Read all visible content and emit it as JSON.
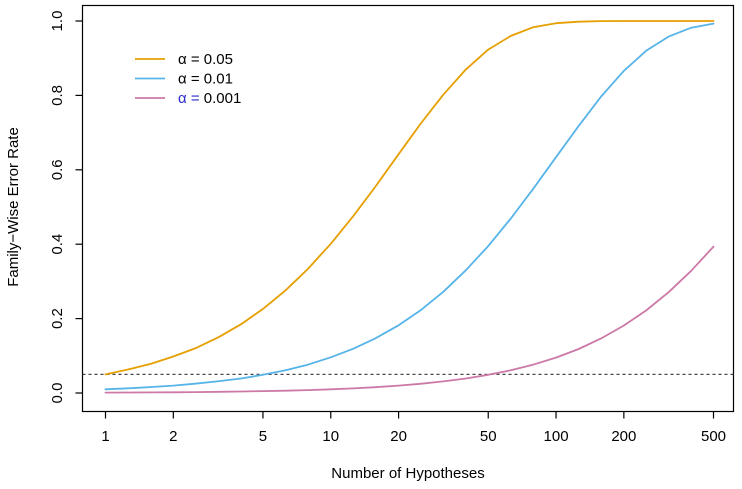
{
  "figure": {
    "background": "#FFFFFF",
    "box_color": "#000000"
  },
  "chart_data": {
    "type": "line",
    "title": "",
    "xlabel": "Number of Hypotheses",
    "ylabel": "Family−Wise Error Rate",
    "x_scale": "log",
    "xlim": [
      1,
      500
    ],
    "ylim": [
      0,
      1
    ],
    "grid": false,
    "legend_position": "top-left",
    "x_ticks": {
      "values": [
        1,
        2,
        5,
        10,
        20,
        50,
        100,
        200,
        500
      ],
      "labels": [
        "1",
        "2",
        "5",
        "10",
        "20",
        "50",
        "100",
        "200",
        "500"
      ]
    },
    "y_ticks": {
      "values": [
        0,
        0.2,
        0.4,
        0.6,
        0.8,
        1.0
      ],
      "labels": [
        "0.0",
        "0.2",
        "0.4",
        "0.6",
        "0.8",
        "1.0"
      ]
    },
    "reference_line": {
      "y": 0.05,
      "style": "dashed",
      "color": "#444444",
      "dash": "3 3"
    },
    "x": [
      1,
      1.3,
      1.6,
      2,
      2.5,
      3.2,
      4,
      5,
      6.3,
      7.9,
      10,
      12.6,
      15.8,
      20,
      25,
      31.6,
      39.8,
      50,
      63,
      79,
      100,
      126,
      158,
      200,
      251,
      316,
      398,
      500
    ],
    "series": [
      {
        "name": "α = 0.05",
        "alpha": 0.05,
        "color": "#E69F00",
        "values": [
          0.05,
          0.065,
          0.079,
          0.098,
          0.12,
          0.151,
          0.185,
          0.226,
          0.276,
          0.333,
          0.401,
          0.476,
          0.555,
          0.642,
          0.723,
          0.802,
          0.87,
          0.923,
          0.96,
          0.983,
          0.994,
          0.998,
          0.9997,
          1.0,
          1.0,
          1.0,
          1.0,
          1.0
        ]
      },
      {
        "name": "α = 0.01",
        "alpha": 0.01,
        "color": "#56B4E9",
        "values": [
          0.01,
          0.013,
          0.016,
          0.02,
          0.025,
          0.032,
          0.039,
          0.049,
          0.061,
          0.076,
          0.096,
          0.119,
          0.147,
          0.182,
          0.222,
          0.272,
          0.33,
          0.395,
          0.469,
          0.548,
          0.634,
          0.718,
          0.796,
          0.866,
          0.92,
          0.958,
          0.982,
          0.993
        ]
      },
      {
        "name": "α = 0.001",
        "alpha": 0.001,
        "color": "#CC79A7",
        "values": [
          0.001,
          0.0013,
          0.0016,
          0.002,
          0.0025,
          0.0032,
          0.004,
          0.005,
          0.0063,
          0.0079,
          0.01,
          0.0125,
          0.0157,
          0.02,
          0.0247,
          0.0311,
          0.039,
          0.0488,
          0.0611,
          0.076,
          0.0952,
          0.1184,
          0.1462,
          0.1814,
          0.2219,
          0.2711,
          0.3285,
          0.3936
        ]
      }
    ],
    "legend": [
      {
        "prefix": "α = ",
        "value": "0.05",
        "prefix_color": "#000000",
        "value_color": "#000000",
        "line_color": "#E69F00"
      },
      {
        "prefix": "α = ",
        "value": "0.01",
        "prefix_color": "#000000",
        "value_color": "#000000",
        "line_color": "#56B4E9"
      },
      {
        "prefix": "α = ",
        "value": "0.001",
        "prefix_color": "#2A2ACC",
        "value_color": "#000000",
        "line_color": "#CC79A7"
      }
    ]
  }
}
